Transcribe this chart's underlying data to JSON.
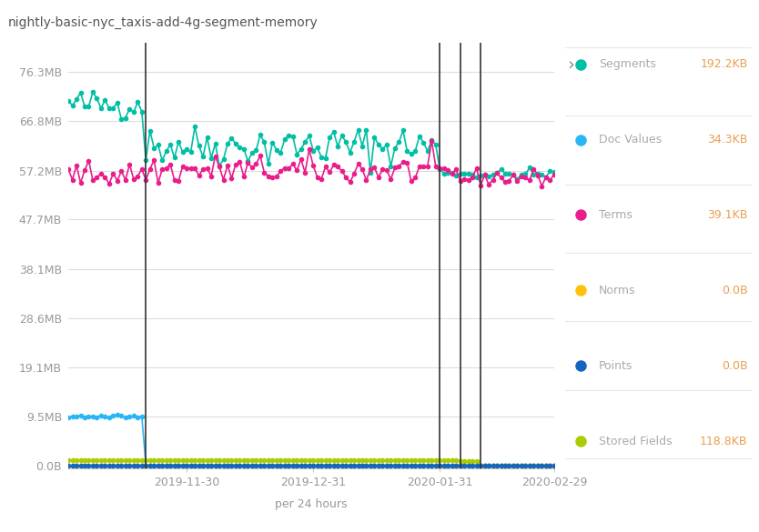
{
  "title": "nightly-basic-nyc_taxis-add-4g-segment-memory",
  "xlabel": "per 24 hours",
  "yticks_labels": [
    "0.0B",
    "9.5MB",
    "19.1MB",
    "28.6MB",
    "38.1MB",
    "47.7MB",
    "57.2MB",
    "66.8MB",
    "76.3MB"
  ],
  "yticks_values": [
    0,
    9961472,
    20027146,
    29990912,
    39954688,
    50069504,
    59965440,
    70058803,
    79990374
  ],
  "xtick_labels": [
    "2019-11-30",
    "2019-12-31",
    "2020-01-31",
    "2020-02-29"
  ],
  "bg_color": "#ffffff",
  "grid_color": "#dddddd",
  "legend": [
    {
      "label": "Segments",
      "color": "#00bfa5",
      "value": "192.2KB"
    },
    {
      "label": "Doc Values",
      "color": "#29b6f6",
      "value": "34.3KB"
    },
    {
      "label": "Terms",
      "color": "#e91e8c",
      "value": "39.1KB"
    },
    {
      "label": "Norms",
      "color": "#ffc107",
      "value": "0.0B"
    },
    {
      "label": "Points",
      "color": "#1565c0",
      "value": "0.0B"
    },
    {
      "label": "Stored Fields",
      "color": "#aacc00",
      "value": "118.8KB"
    }
  ],
  "segments_color": "#00bfa5",
  "doc_values_color": "#29b6f6",
  "terms_color": "#e91e8c",
  "norms_color": "#ffc107",
  "points_color": "#1565c0",
  "stored_fields_color": "#aacc00",
  "vline_color": "#333333",
  "title_color": "#555555",
  "tick_color": "#999999",
  "legend_label_color": "#aaaaaa",
  "legend_value_color": "#e8a050",
  "legend_sep_color": "#e8e8e8",
  "spine_color": "#cccccc"
}
